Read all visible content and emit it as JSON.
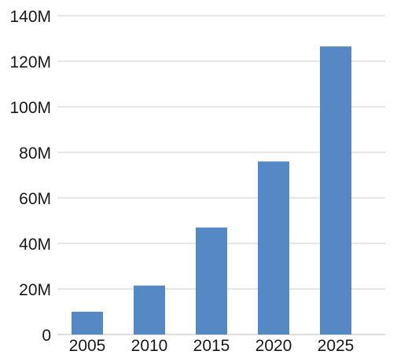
{
  "chart_data": {
    "type": "bar",
    "title": "",
    "xlabel": "",
    "ylabel": "",
    "categories": [
      "2005",
      "2010",
      "2015",
      "2020",
      "2025"
    ],
    "x_positions": [
      2005,
      2010,
      2015,
      2020,
      2025
    ],
    "values": [
      10000000,
      21500000,
      47000000,
      76000000,
      126500000
    ],
    "ylim": [
      0,
      140000000
    ],
    "yticks": [
      0,
      20000000,
      40000000,
      60000000,
      80000000,
      100000000,
      120000000,
      140000000
    ],
    "ytick_labels": [
      "0",
      "20M",
      "40M",
      "60M",
      "80M",
      "100M",
      "120M",
      "140M"
    ],
    "bar_color": "#5588c4",
    "grid": true,
    "legend": "none"
  }
}
